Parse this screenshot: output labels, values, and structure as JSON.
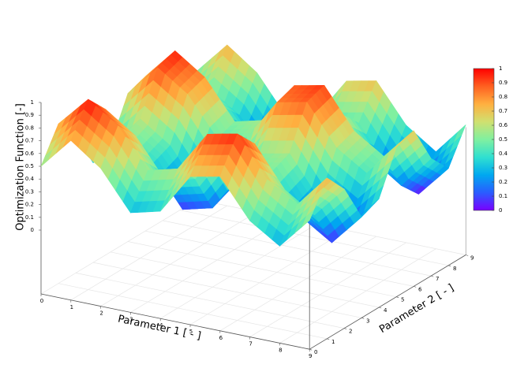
{
  "chart_data": {
    "type": "surface",
    "xlabel": "Parameter 1 [ - ]",
    "ylabel": "Parameter 2 [ - ]",
    "zlabel": "Optimization Function [-]",
    "x": [
      0,
      1,
      2,
      3,
      4,
      5,
      6,
      7,
      8,
      9
    ],
    "y": [
      0,
      1,
      2,
      3,
      4,
      5,
      6,
      7,
      8,
      9
    ],
    "z": [
      [
        0.5,
        0.75,
        0.58,
        0.28,
        0.34,
        0.66,
        0.71,
        0.41,
        0.26,
        0.51
      ],
      [
        0.75,
        0.99,
        0.83,
        0.53,
        0.59,
        0.91,
        0.96,
        0.65,
        0.5,
        0.76
      ],
      [
        0.58,
        0.83,
        0.67,
        0.37,
        0.43,
        0.75,
        0.8,
        0.49,
        0.34,
        0.59
      ],
      [
        0.28,
        0.53,
        0.37,
        0.06,
        0.12,
        0.45,
        0.5,
        0.19,
        0.04,
        0.29
      ],
      [
        0.34,
        0.59,
        0.43,
        0.12,
        0.18,
        0.51,
        0.56,
        0.25,
        0.1,
        0.35
      ],
      [
        0.66,
        0.91,
        0.75,
        0.45,
        0.51,
        0.83,
        0.88,
        0.57,
        0.42,
        0.67
      ],
      [
        0.71,
        0.96,
        0.8,
        0.5,
        0.56,
        0.88,
        0.93,
        0.62,
        0.47,
        0.72
      ],
      [
        0.41,
        0.65,
        0.49,
        0.19,
        0.25,
        0.57,
        0.62,
        0.32,
        0.16,
        0.42
      ],
      [
        0.26,
        0.5,
        0.34,
        0.04,
        0.1,
        0.42,
        0.47,
        0.16,
        0.01,
        0.26
      ],
      [
        0.51,
        0.76,
        0.59,
        0.29,
        0.35,
        0.67,
        0.72,
        0.42,
        0.26,
        0.52
      ]
    ],
    "xlim": [
      0,
      9
    ],
    "ylim": [
      0,
      9
    ],
    "zlim": [
      -0.5,
      1
    ],
    "xticks": [
      0,
      1,
      2,
      3,
      4,
      5,
      6,
      7,
      8,
      9
    ],
    "yticks": [
      0,
      1,
      2,
      3,
      4,
      5,
      6,
      7,
      8,
      9
    ],
    "zticks": [
      0,
      0.1,
      0.2,
      0.3,
      0.4,
      0.5,
      0.6,
      0.7,
      0.8,
      0.9,
      1
    ],
    "grid": true,
    "colorbar": {
      "lim": [
        0,
        1
      ],
      "ticks": [
        0,
        0.1,
        0.2,
        0.3,
        0.4,
        0.5,
        0.6,
        0.7,
        0.8,
        0.9,
        1
      ],
      "colors": [
        "#7a00ff",
        "#2a5cff",
        "#00a8f0",
        "#30e0d0",
        "#80f0a0",
        "#d0e070",
        "#ffb040",
        "#ff6020",
        "#ff0000"
      ]
    }
  }
}
